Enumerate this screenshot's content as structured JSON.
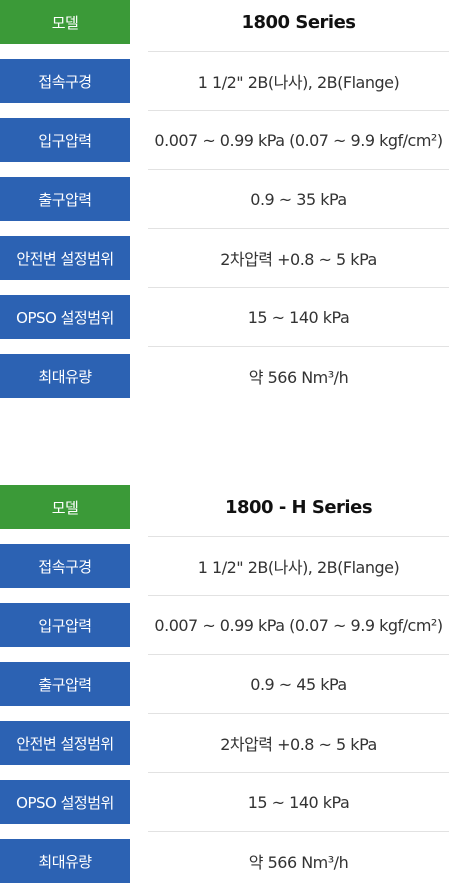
{
  "tables": [
    {
      "header": {
        "label": "모델",
        "value": "1800 Series"
      },
      "rows": [
        {
          "label": "접속구경",
          "value": "1 1/2\" 2B(나사), 2B(Flange)"
        },
        {
          "label": "입구압력",
          "value": "0.007 ~ 0.99 kPa (0.07 ~ 9.9 kgf/cm²)"
        },
        {
          "label": "출구압력",
          "value": "0.9 ~ 35 kPa"
        },
        {
          "label": "안전변 설정범위",
          "value": "2차압력 +0.8 ~ 5 kPa"
        },
        {
          "label": "OPSO 설정범위",
          "value": "15 ~ 140 kPa"
        },
        {
          "label": "최대유량",
          "value": "약 566 Nm³/h"
        }
      ]
    },
    {
      "header": {
        "label": "모델",
        "value": "1800 - H Series"
      },
      "rows": [
        {
          "label": "접속구경",
          "value": "1 1/2\" 2B(나사), 2B(Flange)"
        },
        {
          "label": "입구압력",
          "value": "0.007 ~ 0.99 kPa (0.07 ~ 9.9 kgf/cm²)"
        },
        {
          "label": "출구압력",
          "value": "0.9 ~ 45 kPa"
        },
        {
          "label": "안전변 설정범위",
          "value": "2차압력 +0.8 ~ 5 kPa"
        },
        {
          "label": "OPSO 설정범위",
          "value": "15 ~ 140 kPa"
        },
        {
          "label": "최대유량",
          "value": "약 566 Nm³/h"
        }
      ]
    }
  ]
}
